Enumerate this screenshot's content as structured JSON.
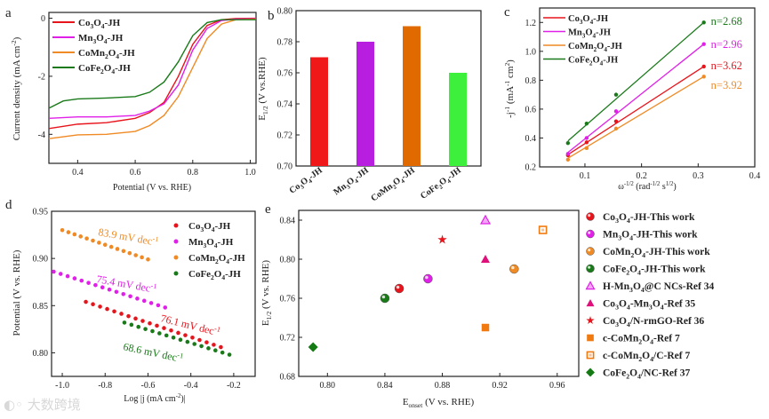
{
  "watermark": {
    "logo_text": "大数跨境"
  },
  "chart_data": [
    {
      "panel": "a",
      "type": "line",
      "xlabel": "Potential (V vs. RHE)",
      "ylabel": "Current density (mA cm-2)",
      "xlim": [
        0.3,
        1.02
      ],
      "ylim": [
        -5,
        0.2
      ],
      "xticks": [
        0.4,
        0.6,
        0.8,
        1.0
      ],
      "yticks": [
        0,
        -2,
        -4
      ],
      "legend_position": "top-left",
      "series": [
        {
          "name": "Co3O4-JH",
          "color": "#e8141c",
          "x": [
            0.3,
            0.4,
            0.5,
            0.6,
            0.65,
            0.7,
            0.75,
            0.8,
            0.85,
            0.9,
            0.95,
            1.02
          ],
          "y": [
            -3.8,
            -3.65,
            -3.6,
            -3.45,
            -3.25,
            -2.9,
            -2.0,
            -0.9,
            -0.25,
            -0.05,
            -0.01,
            0
          ]
        },
        {
          "name": "Mn3O4-JH",
          "color": "#e020e8",
          "x": [
            0.3,
            0.4,
            0.5,
            0.6,
            0.65,
            0.7,
            0.75,
            0.8,
            0.85,
            0.9,
            0.95,
            1.02
          ],
          "y": [
            -3.45,
            -3.4,
            -3.4,
            -3.35,
            -3.2,
            -2.95,
            -2.3,
            -1.1,
            -0.35,
            -0.08,
            -0.03,
            -0.02
          ]
        },
        {
          "name": "CoMn2O4-JH",
          "color": "#f08a24",
          "x": [
            0.3,
            0.4,
            0.5,
            0.6,
            0.65,
            0.7,
            0.75,
            0.8,
            0.85,
            0.9,
            0.95,
            1.02
          ],
          "y": [
            -4.15,
            -4.02,
            -4.0,
            -3.9,
            -3.7,
            -3.35,
            -2.7,
            -1.7,
            -0.7,
            -0.2,
            -0.05,
            -0.03
          ]
        },
        {
          "name": "CoFe2O4-JH",
          "color": "#1a7a1a",
          "x": [
            0.3,
            0.35,
            0.4,
            0.5,
            0.6,
            0.65,
            0.7,
            0.75,
            0.8,
            0.85,
            0.9,
            1.02
          ],
          "y": [
            -3.1,
            -2.85,
            -2.78,
            -2.75,
            -2.7,
            -2.55,
            -2.2,
            -1.5,
            -0.6,
            -0.15,
            -0.05,
            -0.05
          ]
        }
      ]
    },
    {
      "panel": "b",
      "type": "bar",
      "ylabel": "E1/2 (V vs.RHE)",
      "categories": [
        "Co3O4-JH",
        "Mn3O4-JH",
        "CoMn2O4-JH",
        "CoFe2O4-JH"
      ],
      "values": [
        0.77,
        0.78,
        0.79,
        0.76
      ],
      "colors": [
        "#f01818",
        "#b81ee0",
        "#e06a00",
        "#3cf03c"
      ],
      "ylim": [
        0.7,
        0.8
      ],
      "yticks": [
        0.7,
        0.72,
        0.74,
        0.76,
        0.78,
        0.8
      ]
    },
    {
      "panel": "c",
      "type": "scatter",
      "xlabel": "ω-1/2 (rad-1/2 s1/2)",
      "ylabel": "-j-1 (mA-1 cm2)",
      "xlim": [
        0.02,
        0.4
      ],
      "ylim": [
        0.2,
        1.3
      ],
      "xticks": [
        0.1,
        0.2,
        0.3,
        0.4
      ],
      "yticks": [
        0.2,
        0.4,
        0.6,
        0.8,
        1.0,
        1.2
      ],
      "legend_position": "top-left",
      "x": [
        0.07,
        0.103,
        0.155,
        0.31
      ],
      "series": [
        {
          "name": "Co3O4-JH",
          "color": "#e8141c",
          "values": [
            0.28,
            0.37,
            0.515,
            0.895
          ],
          "fit": [
            0.285,
            0.895
          ],
          "annotation": "n=3.62"
        },
        {
          "name": "Mn3O4-JH",
          "color": "#e020e8",
          "values": [
            0.29,
            0.4,
            0.585,
            1.05
          ],
          "fit": [
            0.3,
            1.05
          ],
          "annotation": "n=2.96"
        },
        {
          "name": "CoMn2O4-JH",
          "color": "#f08a24",
          "values": [
            0.25,
            0.33,
            0.465,
            0.825
          ],
          "fit": [
            0.26,
            0.825
          ],
          "annotation": "n=3.92"
        },
        {
          "name": "CoFe2O4-JH",
          "color": "#1a7a1a",
          "values": [
            0.365,
            0.5,
            0.7,
            1.2
          ],
          "fit": [
            0.38,
            1.2
          ],
          "annotation": "n=2.68"
        }
      ]
    },
    {
      "panel": "d",
      "type": "scatter",
      "xlabel": "Log |j (mA cm-2)|",
      "ylabel": "Potential (V vs. RHE)",
      "xlim": [
        -1.05,
        -0.1
      ],
      "ylim": [
        0.775,
        0.95
      ],
      "xticks": [
        -1.0,
        -0.8,
        -0.6,
        -0.4,
        -0.2
      ],
      "yticks": [
        0.8,
        0.85,
        0.9,
        0.95
      ],
      "legend_position": "top-right",
      "series": [
        {
          "name": "Co3O4-JH",
          "color": "#e8141c",
          "x_range": [
            -0.89,
            -0.26
          ],
          "y_range": [
            0.854,
            0.806
          ],
          "n_points": 20,
          "annotation": "76.1 mV dec-1"
        },
        {
          "name": "Mn3O4-JH",
          "color": "#e020e8",
          "x_range": [
            -1.04,
            -0.52
          ],
          "y_range": [
            0.886,
            0.848
          ],
          "n_points": 17,
          "annotation": "75.4 mV dec-1"
        },
        {
          "name": "CoMn2O4-JH",
          "color": "#f08a24",
          "x_range": [
            -1.0,
            -0.6
          ],
          "y_range": [
            0.93,
            0.899
          ],
          "n_points": 15,
          "annotation": "83.9 mV dec-1"
        },
        {
          "name": "CoFe2O4-JH",
          "color": "#1a7a1a",
          "x_range": [
            -0.71,
            -0.22
          ],
          "y_range": [
            0.832,
            0.798
          ],
          "n_points": 16,
          "annotation": "68.6 mV dec-1"
        }
      ]
    },
    {
      "panel": "e",
      "type": "scatter",
      "xlabel": "Eonset (V vs. RHE)",
      "ylabel": "E1/2 (V vs. RHE)",
      "xlim": [
        0.78,
        0.975
      ],
      "ylim": [
        0.68,
        0.85
      ],
      "xticks": [
        0.8,
        0.84,
        0.88,
        0.92,
        0.96
      ],
      "yticks": [
        0.68,
        0.72,
        0.76,
        0.8,
        0.84
      ],
      "legend_position": "outside-right",
      "points": [
        {
          "name": "Co3O4-JH-This work",
          "x": 0.85,
          "y": 0.77,
          "marker": "sphere",
          "color": "#e8141c"
        },
        {
          "name": "Mn3O4-JH-This work",
          "x": 0.87,
          "y": 0.78,
          "marker": "sphere",
          "color": "#e020e8"
        },
        {
          "name": "CoMn2O4-JH-This work",
          "x": 0.93,
          "y": 0.79,
          "marker": "sphere",
          "color": "#f08a24"
        },
        {
          "name": "CoFe2O4-JH-This work",
          "x": 0.84,
          "y": 0.76,
          "marker": "sphere",
          "color": "#1a7a1a"
        },
        {
          "name": "H-Mn3O4@C NCs-Ref 34",
          "x": 0.91,
          "y": 0.84,
          "marker": "triangle-open",
          "color": "#e020e8"
        },
        {
          "name": "Co3O4-Mn3O4-Ref 35",
          "x": 0.91,
          "y": 0.8,
          "marker": "triangle",
          "color": "#e0107a"
        },
        {
          "name": "Co3O4/N-rmGO-Ref 36",
          "x": 0.88,
          "y": 0.82,
          "marker": "star",
          "color": "#e8141c"
        },
        {
          "name": "c-CoMn2O4-Ref 7",
          "x": 0.91,
          "y": 0.73,
          "marker": "square",
          "color": "#f07a10"
        },
        {
          "name": "c-CoMn2O4/C-Ref 7",
          "x": 0.95,
          "y": 0.83,
          "marker": "square-open",
          "color": "#f07a10"
        },
        {
          "name": "CoFe2O4/NC-Ref 37",
          "x": 0.79,
          "y": 0.71,
          "marker": "diamond",
          "color": "#147a14"
        }
      ]
    }
  ]
}
